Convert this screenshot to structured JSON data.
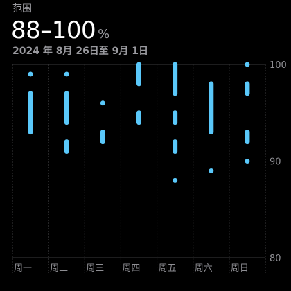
{
  "header": {
    "label": "范围",
    "range_value": "88–100",
    "range_unit": "%",
    "date_range": "2024 年 8月 26日至 9月 1日"
  },
  "colors": {
    "accent": "#5ac8fa",
    "grid": "#3a3a3c",
    "text_secondary": "#8e8e93"
  },
  "chart_data": {
    "type": "range-dots",
    "title": "",
    "xlabel": "",
    "ylabel": "",
    "categories": [
      "周一",
      "周二",
      "周三",
      "周四",
      "周五",
      "周六",
      "周日"
    ],
    "ylim": [
      80,
      100
    ],
    "y_ticks": [
      100,
      90,
      80
    ],
    "grid": true,
    "series": [
      {
        "values": [
          [
            99,
            99
          ],
          [
            93,
            97
          ]
        ]
      },
      {
        "values": [
          [
            99,
            99
          ],
          [
            94,
            97
          ],
          [
            91,
            92
          ]
        ]
      },
      {
        "values": [
          [
            96,
            96
          ],
          [
            92,
            93
          ]
        ]
      },
      {
        "values": [
          [
            98,
            100
          ],
          [
            94,
            95
          ]
        ]
      },
      {
        "values": [
          [
            97,
            100
          ],
          [
            94,
            95
          ],
          [
            91,
            92
          ],
          [
            88,
            88
          ]
        ]
      },
      {
        "values": [
          [
            93,
            98
          ],
          [
            89,
            89
          ]
        ]
      },
      {
        "values": [
          [
            100,
            100
          ],
          [
            97,
            98
          ],
          [
            92,
            93
          ],
          [
            90,
            90
          ]
        ]
      }
    ]
  }
}
